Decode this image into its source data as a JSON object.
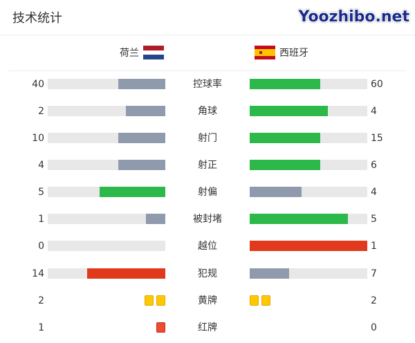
{
  "title": "技术统计",
  "home": {
    "name": "荷兰",
    "flag": "netherlands-flag"
  },
  "away": {
    "name": "西班牙",
    "flag": "spain-flag"
  },
  "colors": {
    "green": "#2db84a",
    "gray": "#8f9aad",
    "red": "#e0391c",
    "yellow": "#ffc800",
    "redcard": "#f04a32",
    "track": "#e8e8e8"
  },
  "stats": [
    {
      "label": "控球率",
      "home": "40",
      "away": "60",
      "home_fraction": 0.4,
      "away_fraction": 0.6,
      "home_color": "gray",
      "away_color": "green"
    },
    {
      "label": "角球",
      "home": "2",
      "away": "4",
      "home_fraction": 0.333,
      "away_fraction": 0.667,
      "home_color": "gray",
      "away_color": "green"
    },
    {
      "label": "射门",
      "home": "10",
      "away": "15",
      "home_fraction": 0.4,
      "away_fraction": 0.6,
      "home_color": "gray",
      "away_color": "green"
    },
    {
      "label": "射正",
      "home": "4",
      "away": "6",
      "home_fraction": 0.4,
      "away_fraction": 0.6,
      "home_color": "gray",
      "away_color": "green"
    },
    {
      "label": "射偏",
      "home": "5",
      "away": "4",
      "home_fraction": 0.556,
      "away_fraction": 0.444,
      "home_color": "green",
      "away_color": "gray"
    },
    {
      "label": "被封堵",
      "home": "1",
      "away": "5",
      "home_fraction": 0.167,
      "away_fraction": 0.833,
      "home_color": "gray",
      "away_color": "green"
    },
    {
      "label": "越位",
      "home": "0",
      "away": "1",
      "home_fraction": 0,
      "away_fraction": 1,
      "home_color": "gray",
      "away_color": "red"
    },
    {
      "label": "犯规",
      "home": "14",
      "away": "7",
      "home_fraction": 0.667,
      "away_fraction": 0.333,
      "home_color": "red",
      "away_color": "gray"
    }
  ],
  "cards": [
    {
      "label": "黄牌",
      "home": "2",
      "away": "2",
      "type": "yellow"
    },
    {
      "label": "红牌",
      "home": "1",
      "away": "0",
      "type": "redcard"
    }
  ],
  "watermark": "Yoozhibo.net"
}
